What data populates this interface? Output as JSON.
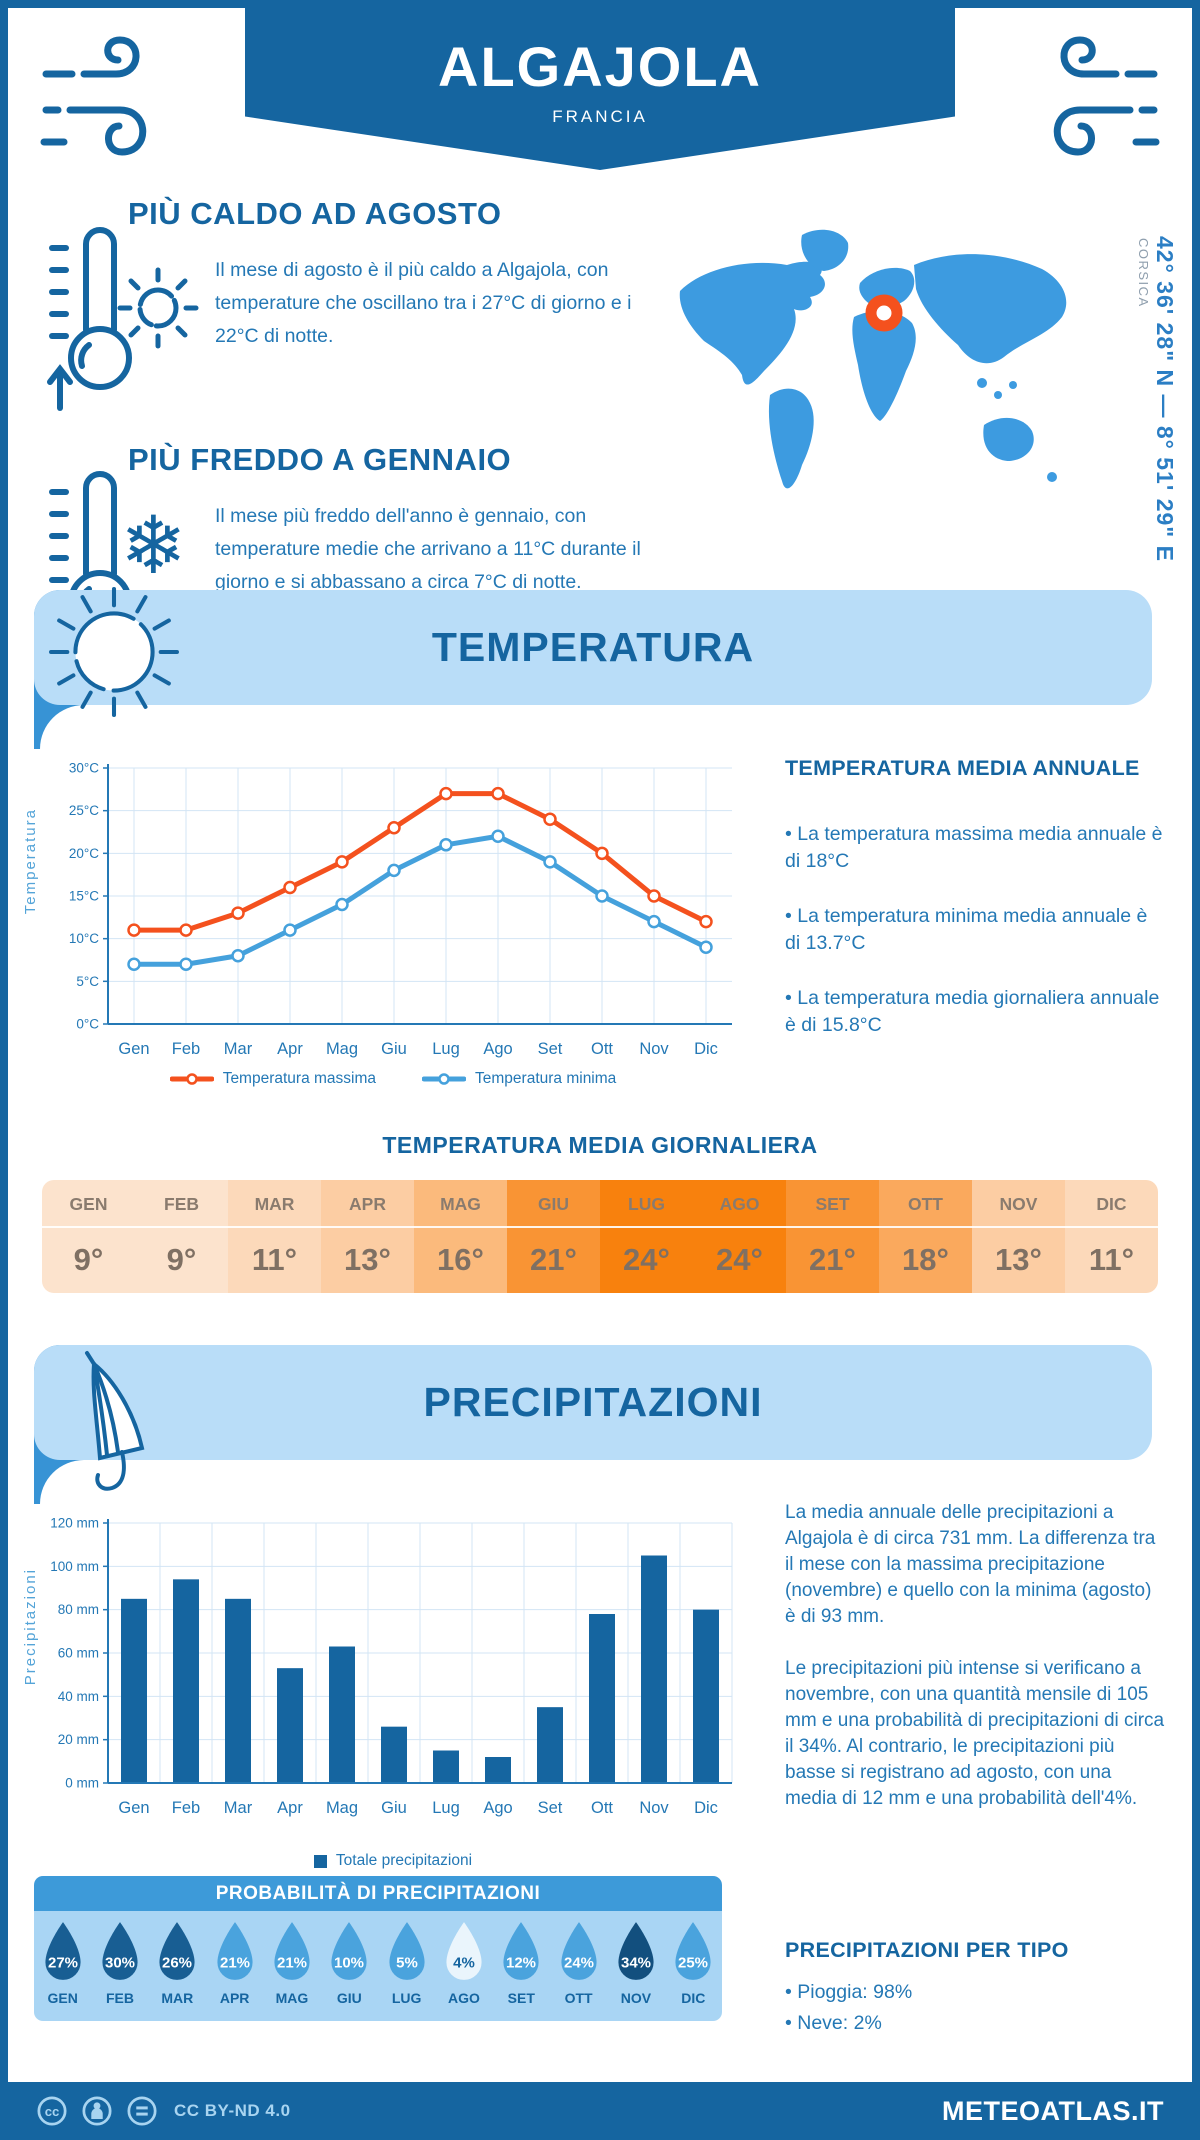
{
  "header": {
    "title": "ALGAJOLA",
    "subtitle": "FRANCIA"
  },
  "highlights": [
    {
      "title": "PIÙ CALDO AD AGOSTO",
      "text": "Il mese di agosto è il più caldo a Algajola, con temperature che oscillano tra i 27°C di giorno e i 22°C di notte."
    },
    {
      "title": "PIÙ FREDDO A GENNAIO",
      "text": "Il mese più freddo dell'anno è gennaio, con temperature medie che arrivano a 11°C durante il giorno e si abbassano a circa 7°C di notte."
    }
  ],
  "map": {
    "coordinates": "42° 36' 28\" N — 8° 51' 29\" E",
    "region_label": "CORSICA",
    "land_color": "#3d9be0",
    "marker_color": "#f4511e"
  },
  "temperature": {
    "section_title": "TEMPERATURA",
    "annual": {
      "title": "TEMPERATURA MEDIA ANNUALE",
      "bullets": [
        "• La temperatura massima media annuale è di 18°C",
        "• La temperatura minima media annuale è di 13.7°C",
        "• La temperatura media giornaliera annuale è di 15.8°C"
      ]
    },
    "daily": {
      "title": "TEMPERATURA MEDIA GIORNALIERA",
      "months": [
        "GEN",
        "FEB",
        "MAR",
        "APR",
        "MAG",
        "GIU",
        "LUG",
        "AGO",
        "SET",
        "OTT",
        "NOV",
        "DIC"
      ],
      "values": [
        "9°",
        "9°",
        "11°",
        "13°",
        "16°",
        "21°",
        "24°",
        "24°",
        "21°",
        "18°",
        "13°",
        "11°"
      ],
      "cell_colors": [
        "#fce3cd",
        "#fce3cd",
        "#fcd9ba",
        "#fccda3",
        "#fbba7c",
        "#f99434",
        "#f8810d",
        "#f8810d",
        "#f99434",
        "#faa95d",
        "#fccda3",
        "#fcd9ba"
      ]
    }
  },
  "precipitation": {
    "section_title": "PRECIPITAZIONI",
    "paragraphs": [
      "La media annuale delle precipitazioni a Algajola è di circa 731 mm. La differenza tra il mese con la massima precipitazione (novembre) e quello con la minima (agosto) è di 93 mm.",
      "Le precipitazioni più intense si verificano a novembre, con una quantità mensile di 105 mm e una probabilità di precipitazioni di circa il 34%. Al contrario, le precipitazioni più basse si registrano ad agosto, con una media di 12 mm e una probabilità dell'4%."
    ],
    "probability": {
      "title": "PROBABILITÀ DI PRECIPITAZIONI",
      "months": [
        "GEN",
        "FEB",
        "MAR",
        "APR",
        "MAG",
        "GIU",
        "LUG",
        "AGO",
        "SET",
        "OTT",
        "NOV",
        "DIC"
      ],
      "values": [
        "27%",
        "30%",
        "26%",
        "21%",
        "21%",
        "10%",
        "5%",
        "4%",
        "12%",
        "24%",
        "34%",
        "25%"
      ],
      "drop_colors": [
        "#185e93",
        "#185e93",
        "#185e93",
        "#4aa3dd",
        "#4aa3dd",
        "#4aa3dd",
        "#4aa3dd",
        "#eaf5fc",
        "#4aa3dd",
        "#4aa3dd",
        "#124f7e",
        "#4aa3dd"
      ],
      "text_colors": [
        "#ffffff",
        "#ffffff",
        "#ffffff",
        "#ffffff",
        "#ffffff",
        "#ffffff",
        "#ffffff",
        "#1565a0",
        "#ffffff",
        "#ffffff",
        "#ffffff",
        "#ffffff"
      ]
    },
    "types": {
      "title": "PRECIPITAZIONI PER TIPO",
      "bullets": [
        "• Pioggia: 98%",
        "• Neve: 2%"
      ]
    }
  },
  "footer": {
    "license": "CC BY-ND 4.0",
    "site": "METEOATLAS.IT"
  },
  "colors": {
    "dark_blue": "#1565a0",
    "body_blue": "#2478b5",
    "banner_light": "#b9ddf8",
    "cap_blue": "#3793d5",
    "grid": "#d3e5f4",
    "max_line": "#f4511e",
    "min_line": "#45a1dc",
    "bar": "#1565a0"
  },
  "chart_data": [
    {
      "type": "line",
      "categories": [
        "Gen",
        "Feb",
        "Mar",
        "Apr",
        "Mag",
        "Giu",
        "Lug",
        "Ago",
        "Set",
        "Ott",
        "Nov",
        "Dic"
      ],
      "series": [
        {
          "name": "Temperatura massima",
          "color": "#f4511e",
          "values": [
            11,
            11,
            13,
            16,
            19,
            23,
            27,
            27,
            24,
            20,
            15,
            12
          ]
        },
        {
          "name": "Temperatura minima",
          "color": "#45a1dc",
          "values": [
            7,
            7,
            8,
            11,
            14,
            18,
            21,
            22,
            19,
            15,
            12,
            9
          ]
        }
      ],
      "xlabel": "",
      "ylabel": "Temperatura",
      "ylim": [
        0,
        30
      ],
      "ytick_step": 5,
      "ytick_suffix": "°C",
      "grid": true,
      "legend_position": "bottom"
    },
    {
      "type": "bar",
      "categories": [
        "Gen",
        "Feb",
        "Mar",
        "Apr",
        "Mag",
        "Giu",
        "Lug",
        "Ago",
        "Set",
        "Ott",
        "Nov",
        "Dic"
      ],
      "series": [
        {
          "name": "Totale precipitazioni",
          "color": "#1565a0",
          "values": [
            85,
            94,
            85,
            53,
            63,
            26,
            15,
            12,
            35,
            78,
            105,
            80
          ]
        }
      ],
      "xlabel": "",
      "ylabel": "Precipitazioni",
      "ylim": [
        0,
        120
      ],
      "ytick_step": 20,
      "ytick_suffix": " mm",
      "grid": true,
      "legend_position": "bottom"
    }
  ]
}
